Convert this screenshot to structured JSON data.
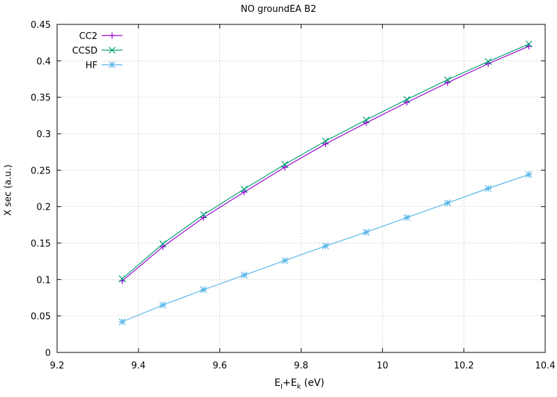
{
  "chart_data": {
    "type": "line",
    "title": "NO groundEA B2",
    "xlabel": {
      "main": "E",
      "sub1": "I",
      "plus": "+E",
      "sub2": "k",
      "unit": " (eV)"
    },
    "ylabel": "X sec (a.u.)",
    "xlim": [
      9.2,
      10.4
    ],
    "ylim": [
      0,
      0.45
    ],
    "xticks": [
      "9.2",
      "9.4",
      "9.6",
      "9.8",
      "10",
      "10.2",
      "10.4"
    ],
    "yticks": [
      "0",
      "0.05",
      "0.1",
      "0.15",
      "0.2",
      "0.25",
      "0.3",
      "0.35",
      "0.4",
      "0.45"
    ],
    "grid": true,
    "legend_position": "top-left",
    "x": [
      9.36,
      9.46,
      9.56,
      9.66,
      9.76,
      9.86,
      9.96,
      10.06,
      10.16,
      10.26,
      10.36
    ],
    "series": [
      {
        "name": "CC2",
        "color": "#9400d3",
        "marker": "plus",
        "values": [
          0.098,
          0.145,
          0.185,
          0.22,
          0.254,
          0.286,
          0.315,
          0.343,
          0.37,
          0.396,
          0.42
        ]
      },
      {
        "name": "CCSD",
        "color": "#009e73",
        "marker": "cross",
        "values": [
          0.101,
          0.149,
          0.189,
          0.224,
          0.258,
          0.29,
          0.319,
          0.347,
          0.374,
          0.399,
          0.423
        ]
      },
      {
        "name": "HF",
        "color": "#56b4e9",
        "marker": "star",
        "values": [
          0.042,
          0.065,
          0.086,
          0.106,
          0.126,
          0.146,
          0.165,
          0.185,
          0.205,
          0.225,
          0.244
        ]
      }
    ]
  }
}
